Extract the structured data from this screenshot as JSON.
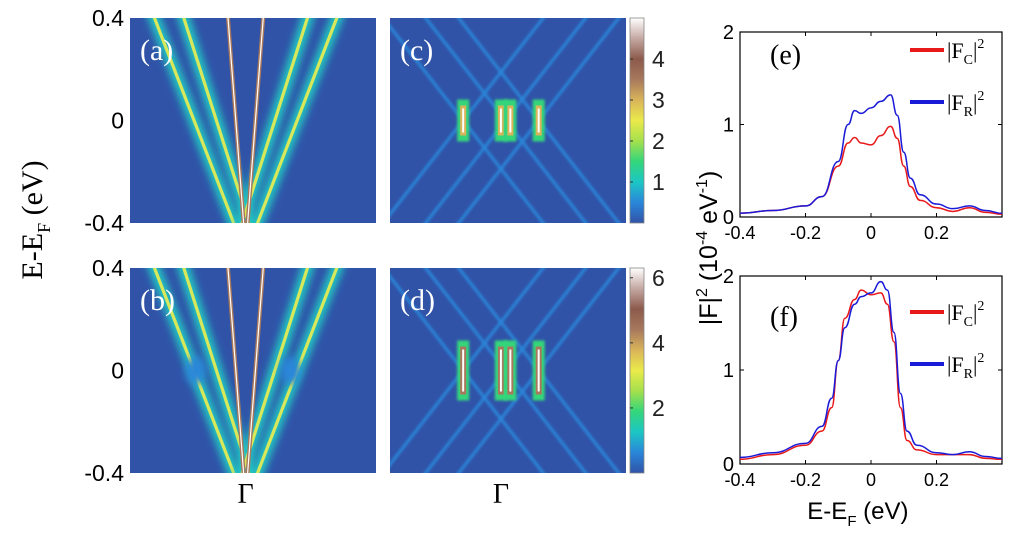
{
  "figure": {
    "shared_ylabel": "E-E",
    "shared_ylabel_sub": "F",
    "shared_ylabel_unit": " (eV)",
    "gamma_label": "Γ"
  },
  "chart_data": [
    {
      "type": "heatmap",
      "panel": "a",
      "label": "(a)",
      "ylim": [
        -0.4,
        0.4
      ],
      "yticks": [
        "0.4",
        "0",
        "-0.4"
      ],
      "colorbar": null
    },
    {
      "type": "heatmap",
      "panel": "b",
      "label": "(b)",
      "ylim": [
        -0.4,
        0.4
      ],
      "yticks": [
        "0.4",
        "0",
        "-0.4"
      ],
      "xlabel": "Γ",
      "colorbar": null
    },
    {
      "type": "heatmap",
      "panel": "c",
      "label": "(c)",
      "ylim": [
        -0.4,
        0.4
      ],
      "colorbar": {
        "range": [
          0,
          5
        ],
        "ticks": [
          "4",
          "3",
          "2",
          "1"
        ]
      }
    },
    {
      "type": "heatmap",
      "panel": "d",
      "label": "(d)",
      "ylim": [
        -0.4,
        0.4
      ],
      "xlabel": "Γ",
      "colorbar": {
        "range": [
          0,
          6.3
        ],
        "ticks": [
          "6",
          "4",
          "2"
        ]
      }
    },
    {
      "type": "line",
      "panel": "e",
      "label": "(e)",
      "xlim": [
        -0.4,
        0.4
      ],
      "ylim": [
        0,
        2
      ],
      "xticks": [
        "-0.4",
        "-0.2",
        "0",
        "0.2"
      ],
      "yticks": [
        "0",
        "1",
        "2"
      ],
      "legend_position": "top-right",
      "series": [
        {
          "name": "|F_C|^2",
          "color": "#e8191a",
          "x": [
            -0.4,
            -0.3,
            -0.2,
            -0.15,
            -0.1,
            -0.07,
            -0.05,
            -0.03,
            0.0,
            0.03,
            0.06,
            0.08,
            0.1,
            0.12,
            0.15,
            0.2,
            0.25,
            0.3,
            0.35,
            0.4
          ],
          "y": [
            0.04,
            0.07,
            0.12,
            0.22,
            0.55,
            0.8,
            0.86,
            0.8,
            0.78,
            0.88,
            0.98,
            0.85,
            0.55,
            0.33,
            0.18,
            0.1,
            0.06,
            0.1,
            0.05,
            0.03
          ]
        },
        {
          "name": "|F_R|^2",
          "color": "#1a1ad9",
          "x": [
            -0.4,
            -0.3,
            -0.2,
            -0.15,
            -0.1,
            -0.07,
            -0.05,
            -0.03,
            0.0,
            0.03,
            0.06,
            0.08,
            0.1,
            0.12,
            0.15,
            0.2,
            0.25,
            0.3,
            0.35,
            0.4
          ],
          "y": [
            0.04,
            0.07,
            0.12,
            0.22,
            0.6,
            1.0,
            1.15,
            1.12,
            1.18,
            1.25,
            1.32,
            1.1,
            0.7,
            0.42,
            0.24,
            0.14,
            0.09,
            0.12,
            0.07,
            0.04
          ]
        }
      ]
    },
    {
      "type": "line",
      "panel": "f",
      "label": "(f)",
      "xlim": [
        -0.4,
        0.4
      ],
      "ylim": [
        0,
        2
      ],
      "xticks": [
        "-0.4",
        "-0.2",
        "0",
        "0.2"
      ],
      "yticks": [
        "0",
        "1",
        "2"
      ],
      "xlabel_base": "E-E",
      "xlabel_sub": "F",
      "xlabel_unit": " (eV)",
      "legend_position": "top-right",
      "series": [
        {
          "name": "|F_C|^2",
          "color": "#e8191a",
          "x": [
            -0.4,
            -0.3,
            -0.2,
            -0.15,
            -0.12,
            -0.1,
            -0.08,
            -0.05,
            -0.03,
            0.0,
            0.03,
            0.05,
            0.07,
            0.09,
            0.11,
            0.14,
            0.2,
            0.25,
            0.3,
            0.35,
            0.4
          ],
          "y": [
            0.05,
            0.1,
            0.2,
            0.35,
            0.6,
            1.1,
            1.55,
            1.75,
            1.85,
            1.8,
            1.82,
            1.7,
            1.3,
            0.6,
            0.25,
            0.15,
            0.1,
            0.1,
            0.1,
            0.06,
            0.05
          ]
        },
        {
          "name": "|F_R|^2",
          "color": "#1a1ad9",
          "x": [
            -0.4,
            -0.3,
            -0.2,
            -0.15,
            -0.12,
            -0.1,
            -0.08,
            -0.05,
            -0.03,
            0.0,
            0.03,
            0.05,
            0.07,
            0.09,
            0.11,
            0.14,
            0.2,
            0.25,
            0.3,
            0.35,
            0.4
          ],
          "y": [
            0.07,
            0.12,
            0.22,
            0.4,
            0.7,
            1.1,
            1.45,
            1.7,
            1.78,
            1.82,
            1.94,
            1.85,
            1.4,
            0.75,
            0.35,
            0.2,
            0.12,
            0.1,
            0.13,
            0.08,
            0.06
          ]
        }
      ]
    }
  ],
  "line_panels_ylabel": {
    "base": "|F|",
    "sup": "2",
    "open": " (10",
    "exp": "-4",
    "unit": " eV",
    "unit_exp": "-1",
    "close": ")"
  },
  "colormap": [
    "#3053a8",
    "#2a86d9",
    "#1cc7c4",
    "#34d67a",
    "#a5e04c",
    "#eaea4a",
    "#d9b45a",
    "#a8785c",
    "#8c5a4c",
    "#c4a8a2",
    "#ffffff"
  ]
}
